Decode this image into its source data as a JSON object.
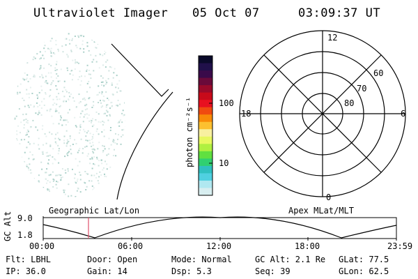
{
  "header": {
    "instrument": "Ultraviolet Imager",
    "date": "05 Oct 07",
    "time": "03:09:37 UT"
  },
  "colorbar": {
    "units_label": "photon cm⁻²s⁻¹",
    "tick_labels": [
      "100",
      "10"
    ],
    "colors": [
      "#0a0a2a",
      "#20104a",
      "#3a0a4a",
      "#6a0a3a",
      "#9a0a2a",
      "#c80a1a",
      "#e81020",
      "#f04a10",
      "#f88a08",
      "#fcc030",
      "#f8f0a0",
      "#e8f860",
      "#b0f040",
      "#60e040",
      "#30d070",
      "#30c0c0",
      "#50d0e0",
      "#b0e8f0",
      "#d8eef0"
    ]
  },
  "polar_plot": {
    "hour_labels": {
      "top": "12",
      "left": "18",
      "right": "6",
      "bottom": "0"
    },
    "lat_labels": [
      "80",
      "70",
      "60"
    ]
  },
  "timeline": {
    "y_axis_label": "GC Alt",
    "y_ticks": [
      "9.0",
      "1.8"
    ],
    "left_title": "Geographic Lat/Lon",
    "right_title": "Apex MLat/MLT",
    "x_ticks": [
      "00:00",
      "06:00",
      "12:00",
      "18:00",
      "23:59"
    ],
    "marker_color": "#e0506a"
  },
  "status": {
    "row1": [
      {
        "key": "filter",
        "text": "Flt: LBHL"
      },
      {
        "key": "door",
        "text": "Door: Open"
      },
      {
        "key": "mode",
        "text": "Mode: Normal"
      },
      {
        "key": "gc_alt",
        "text": "GC Alt: 2.1 Re"
      },
      {
        "key": "glat",
        "text": "GLat:  77.5"
      }
    ],
    "row2": [
      {
        "key": "ip",
        "text": "IP: 36.0"
      },
      {
        "key": "gain",
        "text": "Gain: 14"
      },
      {
        "key": "dsp",
        "text": "Dsp:    5.3"
      },
      {
        "key": "seq",
        "text": "Seq: 39"
      },
      {
        "key": "glon",
        "text": "GLon:  62.5"
      }
    ]
  }
}
